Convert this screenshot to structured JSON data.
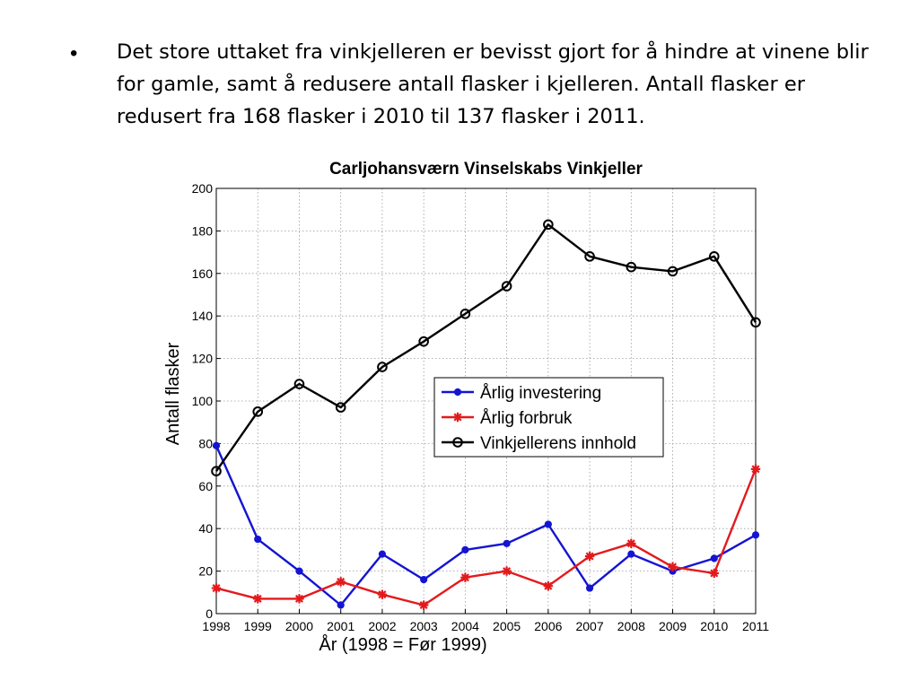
{
  "slide": {
    "bullet_symbol": "•",
    "bullet_text": "Det store uttaket fra vinkjelleren er bevisst gjort for å hindre at vinene blir for gamle, samt å redusere antall flasker i kjelleren. Antall flasker er redusert fra 168 flasker i 2010 til 137 flasker i 2011."
  },
  "chart_data": {
    "type": "line",
    "title": "Carljohansværn Vinselskabs Vinkjeller",
    "xlabel": "År   (1998 = Før 1999)",
    "ylabel": "Antall flasker",
    "x": [
      1998,
      1999,
      2000,
      2001,
      2002,
      2003,
      2004,
      2005,
      2006,
      2007,
      2008,
      2009,
      2010,
      2011
    ],
    "xlim": [
      1998,
      2011
    ],
    "ylim": [
      0,
      200
    ],
    "yticks": [
      0,
      20,
      40,
      60,
      80,
      100,
      120,
      140,
      160,
      180,
      200
    ],
    "grid": true,
    "legend_position": "center-right",
    "series": [
      {
        "name": "Årlig investering",
        "color": "#1414d2",
        "marker": "dot",
        "values": [
          79,
          35,
          20,
          4,
          28,
          16,
          30,
          33,
          42,
          12,
          28,
          20,
          26,
          37
        ]
      },
      {
        "name": "Årlig forbruk",
        "color": "#e31a1c",
        "marker": "star",
        "values": [
          12,
          7,
          7,
          15,
          9,
          4,
          17,
          20,
          13,
          27,
          33,
          22,
          19,
          68
        ]
      },
      {
        "name": "Vinkjellerens innhold",
        "color": "#000000",
        "marker": "circle",
        "values": [
          67,
          95,
          108,
          97,
          116,
          128,
          141,
          154,
          183,
          168,
          163,
          161,
          168,
          137
        ]
      }
    ]
  }
}
